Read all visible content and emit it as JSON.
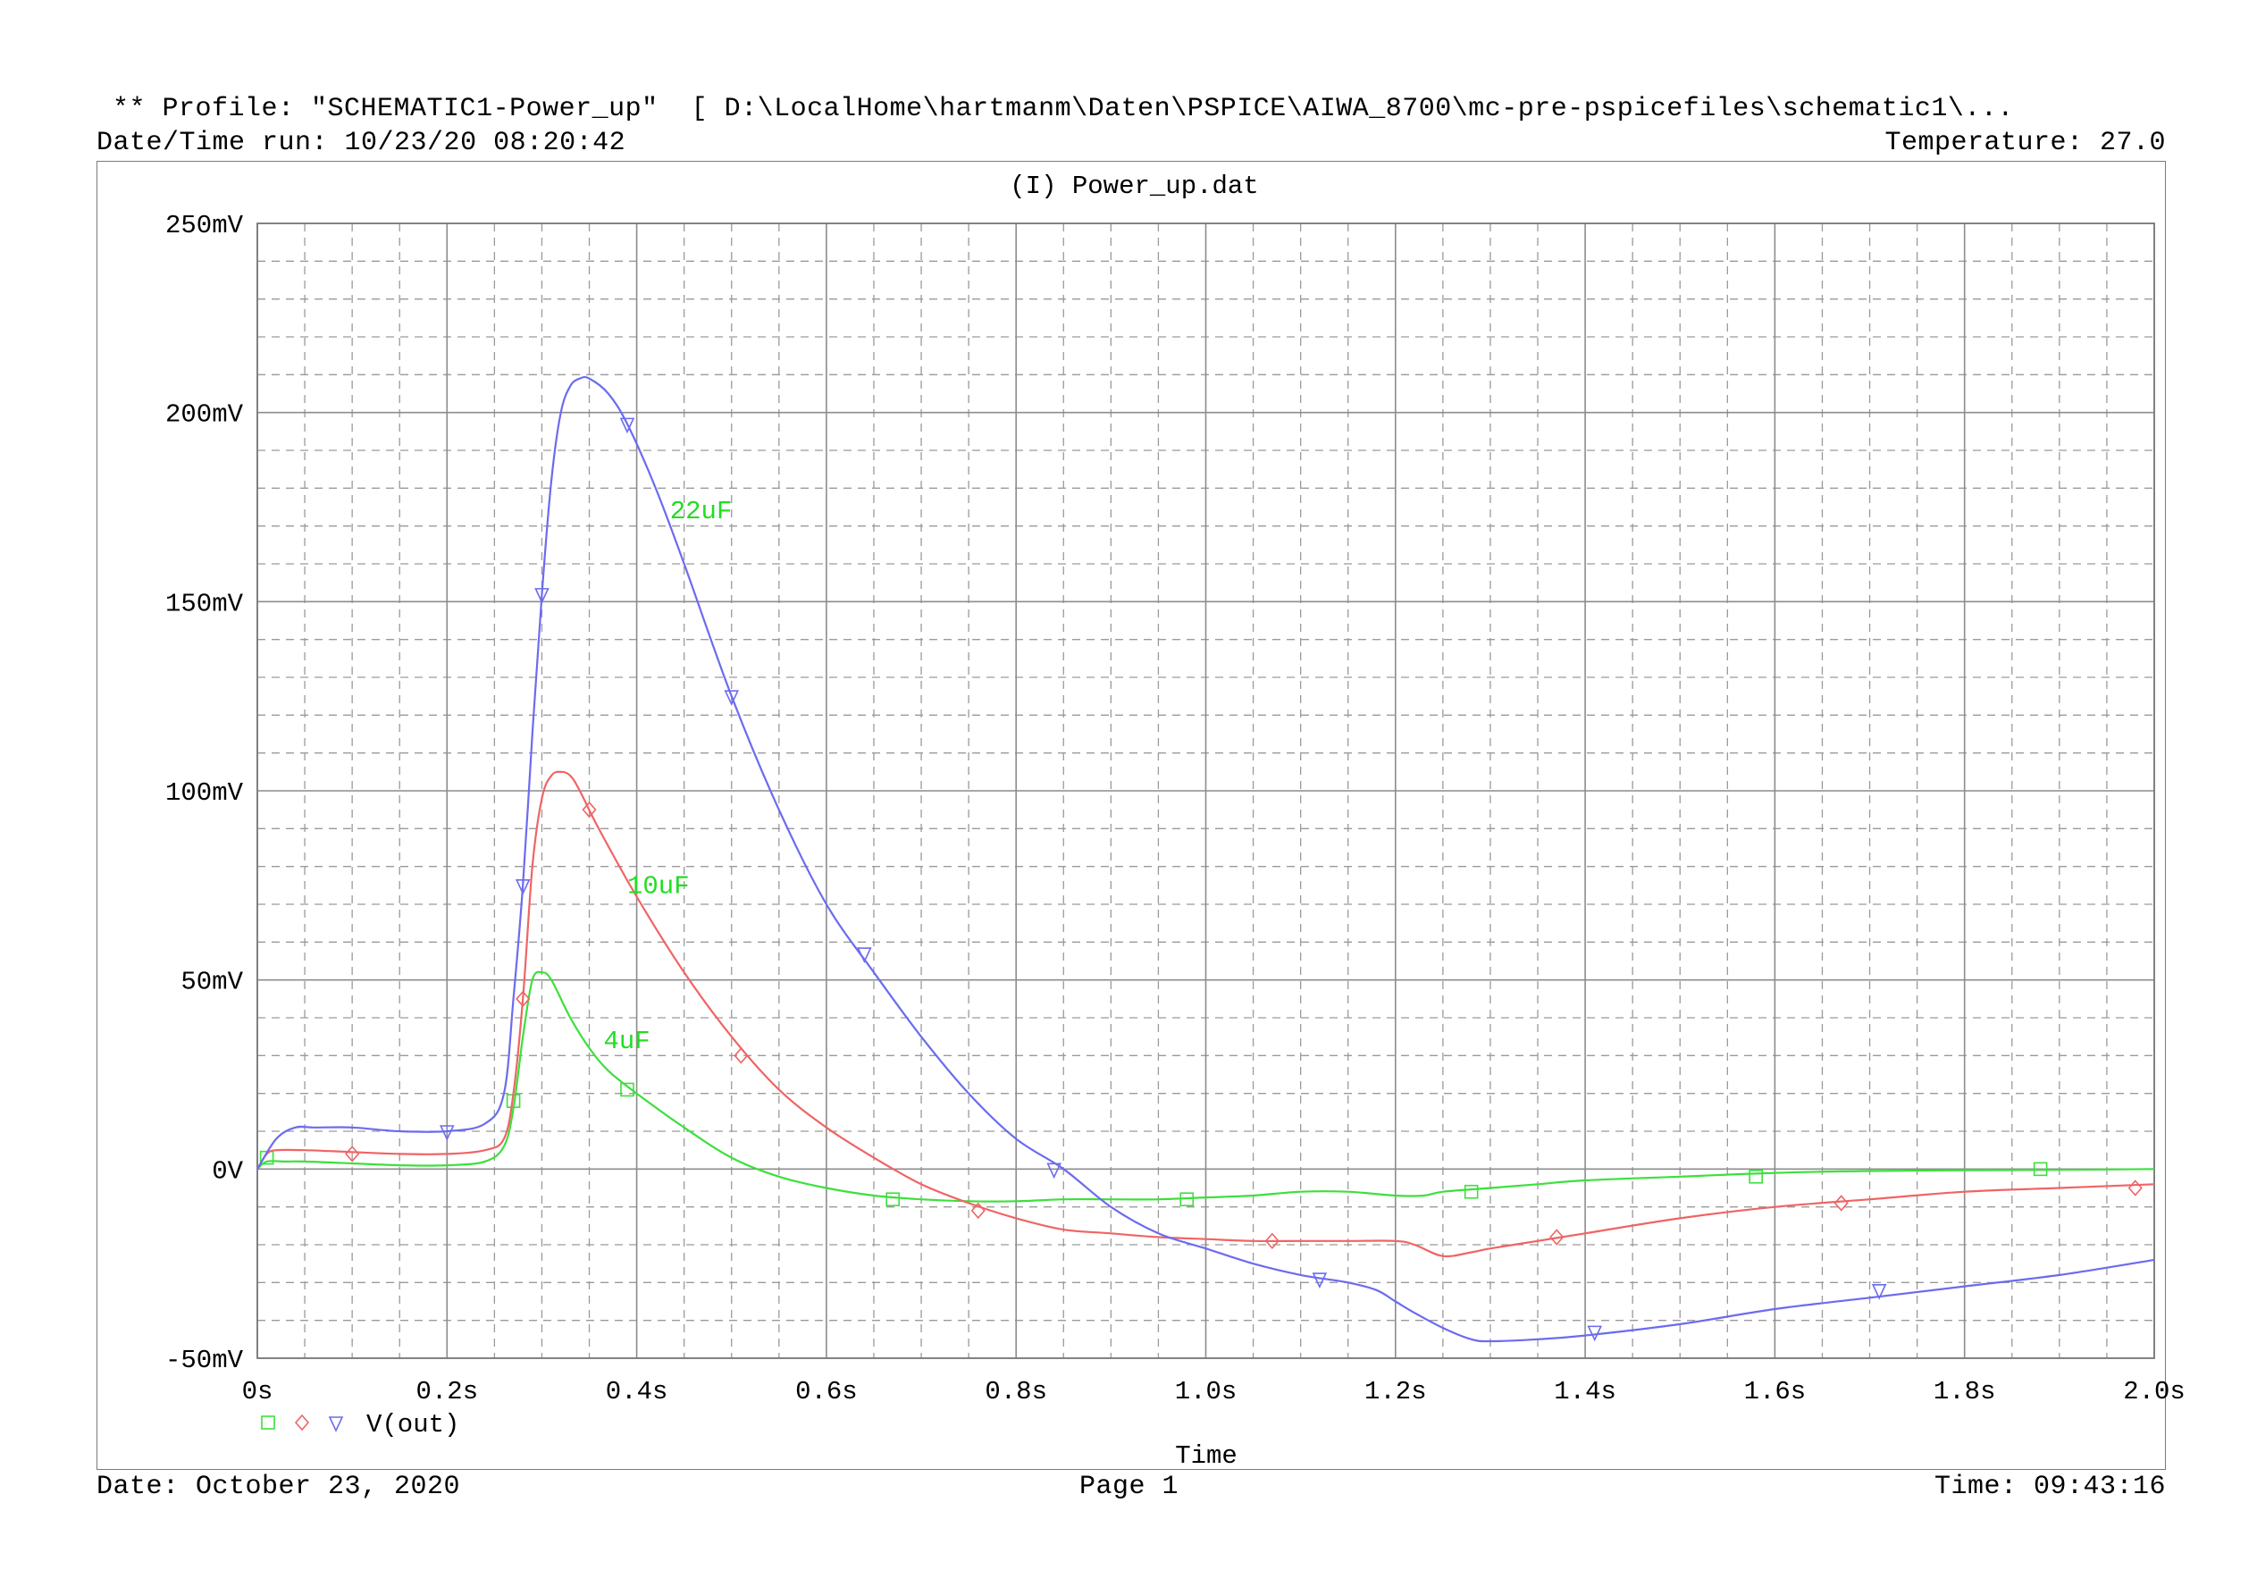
{
  "header": {
    "profile_line": "** Profile: \"SCHEMATIC1-Power_up\"  [ D:\\LocalHome\\hartmanm\\Daten\\PSPICE\\AIWA_8700\\mc-pre-pspicefiles\\schematic1\\...",
    "datetime_run": "Date/Time run: 10/23/20 08:20:42",
    "temperature": "Temperature: 27.0"
  },
  "footer": {
    "date": "Date: October 23, 2020",
    "page": "Page 1",
    "time": "Time: 09:43:16"
  },
  "colors": {
    "blue": "#6b6bf0",
    "red": "#f06464",
    "green": "#3ce03c",
    "annotation": "#22dd22",
    "grid_major": "#8c8c8c",
    "grid_minor": "#9a9a9a"
  },
  "chart_data": {
    "type": "line",
    "title": "(I) Power_up.dat",
    "xlabel": "Time",
    "ylabel": "",
    "xlim": [
      0,
      2.0
    ],
    "ylim": [
      -50,
      250
    ],
    "x_ticks": [
      0,
      0.2,
      0.4,
      0.6,
      0.8,
      1.0,
      1.2,
      1.4,
      1.6,
      1.8,
      2.0
    ],
    "x_tick_labels": [
      "0s",
      "0.2s",
      "0.4s",
      "0.6s",
      "0.8s",
      "1.0s",
      "1.2s",
      "1.4s",
      "1.6s",
      "1.8s",
      "2.0s"
    ],
    "y_ticks": [
      -50,
      0,
      50,
      100,
      150,
      200,
      250
    ],
    "y_tick_labels": [
      "-50mV",
      "0V",
      "50mV",
      "100mV",
      "150mV",
      "200mV",
      "250mV"
    ],
    "grid": true,
    "legend": {
      "placement": "bottom-left",
      "label": "V(out)",
      "markers": [
        "square",
        "diamond",
        "triangle-down"
      ]
    },
    "annotations": [
      {
        "text": "22uF",
        "x": 0.435,
        "y": 172
      },
      {
        "text": "10uF",
        "x": 0.39,
        "y": 73
      },
      {
        "text": "4uF",
        "x": 0.365,
        "y": 32
      }
    ],
    "series": [
      {
        "color": "#6b6bf0",
        "marker": "triangle-down",
        "x": [
          0,
          0.02,
          0.04,
          0.06,
          0.1,
          0.15,
          0.2,
          0.24,
          0.26,
          0.27,
          0.28,
          0.29,
          0.3,
          0.31,
          0.32,
          0.33,
          0.34,
          0.35,
          0.37,
          0.39,
          0.42,
          0.45,
          0.5,
          0.55,
          0.6,
          0.65,
          0.7,
          0.75,
          0.8,
          0.85,
          0.9,
          0.95,
          1.0,
          1.05,
          1.1,
          1.15,
          1.18,
          1.2,
          1.22,
          1.25,
          1.28,
          1.3,
          1.35,
          1.4,
          1.5,
          1.6,
          1.7,
          1.8,
          1.9,
          2.0
        ],
        "y": [
          0,
          8,
          11,
          11,
          11,
          10,
          10,
          12,
          20,
          45,
          75,
          115,
          152,
          182,
          200,
          207,
          209,
          209,
          205,
          197,
          180,
          160,
          125,
          95,
          70,
          52,
          35,
          20,
          8,
          0,
          -10,
          -17,
          -21,
          -25,
          -28,
          -30,
          -32,
          -35,
          -38,
          -42,
          -45,
          -45.5,
          -45,
          -44,
          -41,
          -37,
          -34,
          -31,
          -28,
          -24
        ],
        "markers_x": [
          0.2,
          0.28,
          0.3,
          0.39,
          0.5,
          0.64,
          0.84,
          1.12,
          1.41,
          1.71
        ],
        "markers_y": [
          10,
          75,
          152,
          197,
          125,
          57,
          0,
          -29,
          -43,
          -32
        ]
      },
      {
        "color": "#f06464",
        "marker": "diamond",
        "x": [
          0,
          0.01,
          0.02,
          0.05,
          0.1,
          0.15,
          0.2,
          0.24,
          0.26,
          0.27,
          0.28,
          0.29,
          0.3,
          0.31,
          0.32,
          0.33,
          0.34,
          0.36,
          0.4,
          0.45,
          0.5,
          0.55,
          0.6,
          0.65,
          0.7,
          0.75,
          0.8,
          0.85,
          0.9,
          0.95,
          1.0,
          1.05,
          1.1,
          1.15,
          1.2,
          1.22,
          1.25,
          1.28,
          1.3,
          1.35,
          1.4,
          1.5,
          1.6,
          1.7,
          1.8,
          1.9,
          2.0
        ],
        "y": [
          0,
          4,
          5,
          5,
          4.5,
          4,
          4,
          5,
          8,
          20,
          45,
          80,
          98,
          104,
          105,
          104,
          100,
          90,
          72,
          52,
          35,
          21,
          11,
          3,
          -4,
          -9,
          -13,
          -16,
          -17,
          -18,
          -18.5,
          -19,
          -19,
          -19,
          -19,
          -20,
          -23,
          -22,
          -21,
          -19,
          -17,
          -13,
          -10,
          -8,
          -6,
          -5,
          -4
        ],
        "markers_x": [
          0.1,
          0.28,
          0.35,
          0.51,
          0.76,
          1.07,
          1.37,
          1.67,
          1.98
        ],
        "markers_y": [
          4,
          45,
          95,
          30,
          -11,
          -19,
          -18,
          -9,
          -5
        ]
      },
      {
        "color": "#3ce03c",
        "marker": "square",
        "x": [
          0,
          0.01,
          0.03,
          0.05,
          0.1,
          0.15,
          0.2,
          0.24,
          0.26,
          0.27,
          0.28,
          0.29,
          0.3,
          0.31,
          0.33,
          0.35,
          0.37,
          0.4,
          0.45,
          0.5,
          0.55,
          0.6,
          0.65,
          0.7,
          0.75,
          0.8,
          0.85,
          0.9,
          0.95,
          1.0,
          1.05,
          1.1,
          1.15,
          1.2,
          1.23,
          1.25,
          1.3,
          1.35,
          1.4,
          1.5,
          1.6,
          1.7,
          1.8,
          1.9,
          2.0
        ],
        "y": [
          0,
          2,
          2,
          2,
          1.5,
          1,
          1,
          2,
          6,
          16,
          35,
          50,
          52,
          50,
          40,
          32,
          26,
          20,
          11,
          3,
          -2,
          -5,
          -7,
          -8,
          -8.5,
          -8.5,
          -8,
          -8,
          -8,
          -7.5,
          -7,
          -6,
          -6,
          -7,
          -7,
          -6,
          -5,
          -4,
          -3,
          -2,
          -1,
          -0.5,
          -0.3,
          -0.2,
          0
        ],
        "markers_x": [
          0.01,
          0.27,
          0.39,
          0.67,
          0.98,
          1.28,
          1.58,
          1.88
        ],
        "markers_y": [
          3,
          18,
          21,
          -8,
          -8,
          -6,
          -2,
          0
        ]
      }
    ]
  }
}
